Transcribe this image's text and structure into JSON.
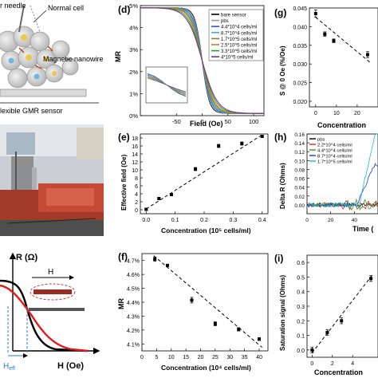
{
  "figure": {
    "left_panels": {
      "schematic_labels": [
        "r needle",
        "Normal cell",
        "Magnetic nanowire",
        "lexible GMR sensor"
      ],
      "r_axis_label": "R (Ω)",
      "h_axis_label": "H (Oe)",
      "h_arrow_label": "H",
      "heff_label": "H",
      "heff_sub": "eff"
    }
  },
  "chart_data": [
    {
      "id": "d",
      "panel_label": "(d)",
      "type": "line",
      "xlabel": "Field (Oe)",
      "ylabel": "MR",
      "xlim": [
        -120,
        120
      ],
      "ylim": [
        0,
        5
      ],
      "xticks": [
        "-50",
        "0",
        "50",
        "100"
      ],
      "yticks": [
        "0%",
        "1%",
        "2%",
        "3%",
        "4%",
        "5%"
      ],
      "series": [
        {
          "name": "bare sensor",
          "color": "#000000",
          "width": 14
        },
        {
          "name": "pbs",
          "color": "#9a9a9a",
          "width": 15
        },
        {
          "name": "4.4*10^4 cells/ml",
          "color": "#2c5fbf",
          "width": 17
        },
        {
          "name": "8.7*10^4 cells/ml",
          "color": "#3bb0c9",
          "width": 19
        },
        {
          "name": "1.7*10^5 cells/ml",
          "color": "#8a7f2e",
          "width": 21
        },
        {
          "name": "2.5*10^5 cells/ml",
          "color": "#d17b2a",
          "width": 23
        },
        {
          "name": "3.3*10^5 cells/ml",
          "color": "#2ca02c",
          "width": 26
        },
        {
          "name": "4*10^5 cells/ml",
          "color": "#7b2c9c",
          "width": 29
        }
      ],
      "inset": {
        "x": [
          -20,
          20
        ],
        "y": [
          0.5,
          2.6
        ],
        "xticks": [
          "-20",
          "-10",
          "0",
          "10",
          "20"
        ],
        "yticks": [
          "2.5%",
          "2%",
          "1.5%",
          "1%"
        ]
      }
    },
    {
      "id": "e",
      "panel_label": "(e)",
      "type": "scatter",
      "xlabel": "Concentration (10⁵ cells/ml)",
      "ylabel": "Effective field (Oe)",
      "xlim": [
        -0.02,
        0.42
      ],
      "ylim": [
        -1,
        19
      ],
      "xticks": [
        "0.0",
        "0.1",
        "0.2",
        "0.3",
        "0.4"
      ],
      "yticks": [
        "0",
        "2",
        "4",
        "6",
        "8",
        "10",
        "12",
        "14",
        "16",
        "18"
      ],
      "x": [
        0,
        0.044,
        0.087,
        0.17,
        0.25,
        0.33,
        0.4
      ],
      "y": [
        0.1,
        2.8,
        3.8,
        10.2,
        16.0,
        16.6,
        18.4
      ],
      "err": [
        0.3,
        0.3,
        0.3,
        0.4,
        0.4,
        0.4,
        0.3
      ],
      "fit": [
        [
          0,
          0.2
        ],
        [
          0.4,
          18.8
        ]
      ]
    },
    {
      "id": "f",
      "panel_label": "(f)",
      "type": "scatter",
      "xlabel": "Concentration (10⁴ cells/ml)",
      "ylabel": "MR",
      "xlim": [
        0,
        43
      ],
      "ylim": [
        4.05,
        4.75
      ],
      "xticks": [
        "0",
        "5",
        "10",
        "15",
        "20",
        "25",
        "30",
        "35",
        "40"
      ],
      "yticks": [
        "4.1%",
        "4.2%",
        "4.3%",
        "4.4%",
        "4.5%",
        "4.6%",
        "4.7%"
      ],
      "x": [
        4.4,
        8.7,
        17,
        25,
        33,
        40
      ],
      "y": [
        4.71,
        4.665,
        4.415,
        4.245,
        4.205,
        4.135
      ],
      "err": [
        0.015,
        0.008,
        0.02,
        0.015,
        0.012,
        0.01
      ],
      "fit": [
        [
          4,
          4.735
        ],
        [
          41,
          4.075
        ]
      ]
    },
    {
      "id": "g",
      "panel_label": "(g)",
      "type": "scatter",
      "xlabel": "Concentration",
      "ylabel": "S @ 0 Oe (%/Oe)",
      "xlim": [
        -3,
        30
      ],
      "ylim": [
        0.0185,
        0.045
      ],
      "xticks": [
        "0",
        "10",
        "20"
      ],
      "yticks": [
        "0.020",
        "0.025",
        "0.030",
        "0.035",
        "0.040",
        "0.045"
      ],
      "x": [
        0,
        4.4,
        8.7,
        25
      ],
      "y": [
        0.0435,
        0.038,
        0.0362,
        0.0325
      ],
      "err": [
        0.001,
        0.0006,
        0.0005,
        0.0008
      ],
      "fit": [
        [
          0,
          0.0425
        ],
        [
          26,
          0.0305
        ]
      ]
    },
    {
      "id": "h",
      "panel_label": "(h)",
      "type": "line",
      "xlabel": "Time (",
      "ylabel": "Delta R (Ohms)",
      "xlim": [
        0,
        60
      ],
      "ylim": [
        -0.02,
        0.16
      ],
      "xticks": [
        "0",
        "20",
        "40"
      ],
      "yticks": [
        "0.00",
        "0.02",
        "0.04",
        "0.06",
        "0.08",
        "0.10",
        "0.12",
        "0.14",
        "0.16"
      ],
      "series": [
        {
          "name": "pbs",
          "color": "#000000"
        },
        {
          "name": "2.2*10^4 cells/ml",
          "color": "#d62728"
        },
        {
          "name": "4.4*10^4 cells/ml",
          "color": "#2ca02c"
        },
        {
          "name": "8.7*10^4 cells/ml",
          "color": "#1f3fbf"
        },
        {
          "name": "1.7*10^5 cells/ml",
          "color": "#17becf"
        }
      ]
    },
    {
      "id": "i",
      "panel_label": "(i)",
      "type": "scatter",
      "xlabel": "Concentration",
      "ylabel": "Saturation signal (Ohms)",
      "xlim": [
        -0.5,
        6.5
      ],
      "ylim": [
        -0.05,
        0.65
      ],
      "xticks": [
        "0",
        "2",
        "4"
      ],
      "yticks": [
        "0.0",
        "0.1",
        "0.2",
        "0.3",
        "0.4",
        "0.5",
        "0.6"
      ],
      "x": [
        0,
        1.5,
        2.9,
        5.8
      ],
      "y": [
        0.0,
        0.12,
        0.2,
        0.49
      ],
      "err": [
        0.02,
        0.02,
        0.02,
        0.02
      ],
      "fit": [
        [
          0,
          -0.02
        ],
        [
          6,
          0.52
        ]
      ]
    }
  ]
}
